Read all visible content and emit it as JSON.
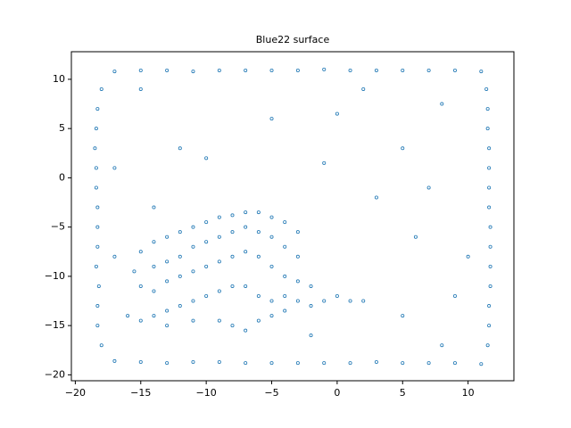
{
  "chart_data": {
    "type": "scatter",
    "title": "Blue22 surface",
    "color": "#1f77b4",
    "x": [
      -17,
      -15,
      -13,
      -11,
      -9,
      -7,
      -5,
      -3,
      -1,
      1,
      3,
      5,
      7,
      9,
      11,
      -17,
      -15,
      -13,
      -11,
      -9,
      -7,
      -5,
      -3,
      -1,
      1,
      3,
      5,
      7,
      9,
      11,
      -18.0,
      -18.3,
      -18.3,
      -18.2,
      -18.4,
      -18.3,
      -18.3,
      -18.3,
      -18.4,
      -18.4,
      -18.5,
      -18.4,
      -18.3,
      -18.0,
      11.5,
      11.6,
      11.6,
      11.7,
      11.7,
      11.7,
      11.7,
      11.6,
      11.6,
      11.6,
      11.6,
      11.5,
      11.5,
      11.4,
      -15,
      -14,
      -13,
      -12,
      -11,
      -10,
      -9,
      -8,
      -7,
      -6,
      -5,
      -4,
      -3,
      -15.5,
      -14,
      -13,
      -12,
      -11,
      -10,
      -9,
      -8,
      -7,
      -6,
      -5,
      -4,
      -3,
      -15,
      -14,
      -13,
      -12,
      -11,
      -10,
      -9,
      -8,
      -7,
      -6,
      -5,
      -4,
      -3,
      -2,
      -16,
      -15,
      -14,
      -13,
      -12,
      -11,
      -10,
      -9,
      -8,
      -7,
      -6,
      -5,
      -4,
      -3,
      -2,
      -1,
      0,
      1,
      2,
      -13,
      -11,
      -9,
      -8,
      -7,
      -6,
      -5,
      -4,
      -10,
      -5,
      0,
      5,
      8,
      -15,
      -12,
      3,
      6,
      9,
      -17,
      -17,
      5,
      8,
      -2,
      7,
      10,
      -14,
      2,
      -1
    ],
    "values": [
      10.8,
      10.9,
      10.9,
      10.8,
      10.9,
      10.9,
      10.9,
      10.9,
      11,
      10.9,
      10.9,
      10.9,
      10.9,
      10.9,
      10.8,
      -18.6,
      -18.7,
      -18.8,
      -18.7,
      -18.7,
      -18.8,
      -18.8,
      -18.8,
      -18.8,
      -18.8,
      -18.7,
      -18.8,
      -18.8,
      -18.8,
      -18.9,
      -17,
      -15,
      -13,
      -11,
      -9,
      -7,
      -5,
      -3,
      -1,
      1,
      3,
      5,
      7,
      9,
      -17,
      -15,
      -13,
      -11,
      -9,
      -7,
      -5,
      -3,
      -1,
      1,
      3,
      5,
      7,
      9,
      -7.5,
      -6.5,
      -6,
      -5.5,
      -5,
      -4.5,
      -4,
      -3.8,
      -3.5,
      -3.5,
      -4,
      -4.5,
      -5.5,
      -9.5,
      -9,
      -8.5,
      -8,
      -7,
      -6.5,
      -6,
      -5.5,
      -5,
      -5.5,
      -6,
      -7,
      -8,
      -11,
      -11.5,
      -10.5,
      -10,
      -9.5,
      -9,
      -8.5,
      -8,
      -7.5,
      -8,
      -9,
      -10,
      -10.5,
      -11,
      -14,
      -14.5,
      -14,
      -13.5,
      -13,
      -12.5,
      -12,
      -11.5,
      -11,
      -11,
      -12,
      -12.5,
      -12,
      -12.5,
      -13,
      -12.5,
      -12,
      -12.5,
      -12.5,
      -15,
      -14.5,
      -14.5,
      -15,
      -15.5,
      -14.5,
      -14,
      -13.5,
      2,
      6,
      6.5,
      3,
      7.5,
      9,
      3,
      -2,
      -6,
      -12,
      -8,
      1,
      -14,
      -17,
      -16,
      -1,
      -8,
      -3,
      9,
      1.5
    ],
    "xlim": [
      -20.3,
      13.5
    ],
    "ylim": [
      -20.6,
      12.8
    ],
    "xticks": [
      {
        "value": -20,
        "label": "−20"
      },
      {
        "value": -15,
        "label": "−15"
      },
      {
        "value": -10,
        "label": "−10"
      },
      {
        "value": -5,
        "label": "−5"
      },
      0,
      5,
      10
    ],
    "yticks": [
      {
        "value": -20,
        "label": "−20"
      },
      {
        "value": -15,
        "label": "−15"
      },
      {
        "value": -10,
        "label": "−10"
      },
      {
        "value": -5,
        "label": "−5"
      },
      0,
      5,
      10
    ]
  }
}
